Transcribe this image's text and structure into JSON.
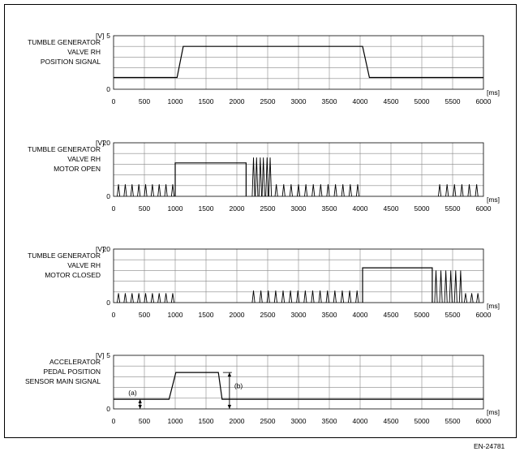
{
  "figure_id": "EN-24781",
  "colors": {
    "line": "#000000",
    "grid": "#888888",
    "frame": "#000000"
  },
  "chart_data": [
    {
      "type": "line",
      "channel_label": [
        "TUMBLE GENERATOR",
        "VALVE RH",
        "POSITION SIGNAL"
      ],
      "y_unit": "[V]",
      "x_unit": "[ms]",
      "ylim": [
        0,
        5
      ],
      "y_ticks": [
        "0",
        "5"
      ],
      "xlim": [
        0,
        6000
      ],
      "x_ticks": [
        "0",
        "500",
        "1000",
        "1500",
        "2000",
        "2500",
        "3000",
        "3500",
        "4000",
        "4500",
        "5000",
        "5500",
        "6000"
      ],
      "grid": true,
      "series": [
        {
          "x": [
            0,
            1030,
            1130,
            4040,
            4150,
            6000
          ],
          "y": [
            1.1,
            1.1,
            4.0,
            4.0,
            1.1,
            1.1
          ]
        }
      ]
    },
    {
      "type": "line",
      "channel_label": [
        "TUMBLE GENERATOR",
        "VALVE RH",
        "MOTOR OPEN"
      ],
      "y_unit": "[V]",
      "x_unit": "[ms]",
      "ylim": [
        0,
        20
      ],
      "y_ticks": [
        "0",
        "20"
      ],
      "xlim": [
        0,
        6000
      ],
      "x_ticks": [
        "0",
        "500",
        "1000",
        "1500",
        "2000",
        "2500",
        "3000",
        "3500",
        "4000",
        "4500",
        "5000",
        "5500",
        "6000"
      ],
      "grid": true,
      "series": [
        {
          "x": [
            1000,
            1000,
            2150,
            2150
          ],
          "y": [
            0,
            12.5,
            12.5,
            0
          ]
        }
      ],
      "pulse_trains": [
        {
          "x": [
            80,
            190,
            300,
            410,
            520,
            630,
            740,
            850,
            960
          ],
          "height": 4.5
        },
        {
          "x": [
            2270,
            2320,
            2380,
            2430,
            2490,
            2540
          ],
          "height": 14.5
        },
        {
          "x": [
            2640,
            2760,
            2880,
            3000,
            3120,
            3240,
            3360,
            3480,
            3600,
            3720,
            3840,
            3960
          ],
          "height": 4.5
        },
        {
          "x": [
            5290,
            5410,
            5530,
            5650,
            5770,
            5890
          ],
          "height": 4.5
        }
      ]
    },
    {
      "type": "line",
      "channel_label": [
        "TUMBLE GENERATOR",
        "VALVE RH",
        "MOTOR CLOSED"
      ],
      "y_unit": "[V]",
      "x_unit": "[ms]",
      "ylim": [
        0,
        20
      ],
      "y_ticks": [
        "0",
        "20"
      ],
      "xlim": [
        0,
        6000
      ],
      "x_ticks": [
        "0",
        "500",
        "1000",
        "1500",
        "2000",
        "2500",
        "3000",
        "3500",
        "4000",
        "4500",
        "5000",
        "5500",
        "6000"
      ],
      "grid": true,
      "series": [
        {
          "x": [
            4040,
            4040,
            5170,
            5170
          ],
          "y": [
            0,
            13,
            13,
            0
          ]
        }
      ],
      "pulse_trains": [
        {
          "x": [
            80,
            190,
            300,
            410,
            520,
            630,
            740,
            850,
            960
          ],
          "height": 3.5
        },
        {
          "x": [
            2270,
            2390,
            2510,
            2630,
            2750,
            2870,
            2990,
            3110,
            3230,
            3350,
            3470,
            3590,
            3710,
            3830,
            3950
          ],
          "height": 4.5
        },
        {
          "x": [
            5230,
            5310,
            5390,
            5470,
            5550,
            5630
          ],
          "height": 12
        },
        {
          "x": [
            5710,
            5810,
            5910
          ],
          "height": 3.5
        }
      ]
    },
    {
      "type": "line",
      "channel_label": [
        "ACCELERATOR",
        "PEDAL POSITION",
        "SENSOR MAIN SIGNAL"
      ],
      "y_unit": "[V]",
      "x_unit": "[ms]",
      "ylim": [
        0,
        5
      ],
      "y_ticks": [
        "0",
        "5"
      ],
      "xlim": [
        0,
        6000
      ],
      "x_ticks": [
        "0",
        "500",
        "1000",
        "1500",
        "2000",
        "2500",
        "3000",
        "3500",
        "4000",
        "4500",
        "5000",
        "5500",
        "6000"
      ],
      "grid": true,
      "series": [
        {
          "x": [
            0,
            900,
            1010,
            1700,
            1760,
            6000
          ],
          "y": [
            0.9,
            0.9,
            3.4,
            3.4,
            0.9,
            0.9
          ]
        }
      ],
      "annotations": [
        {
          "label": "(a)",
          "x": 430,
          "y_from": 0,
          "y_to": 0.9
        },
        {
          "label": "(b)",
          "x": 1880,
          "y_from": 0,
          "y_to": 3.4
        }
      ]
    }
  ]
}
